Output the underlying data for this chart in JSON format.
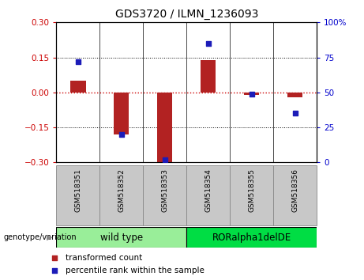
{
  "title": "GDS3720 / ILMN_1236093",
  "samples": [
    "GSM518351",
    "GSM518352",
    "GSM518353",
    "GSM518354",
    "GSM518355",
    "GSM518356"
  ],
  "transformed_count": [
    0.05,
    -0.18,
    -0.3,
    0.14,
    -0.01,
    -0.02
  ],
  "percentile_rank": [
    72,
    20,
    2,
    85,
    49,
    35
  ],
  "ylim_left": [
    -0.3,
    0.3
  ],
  "ylim_right": [
    0,
    100
  ],
  "yticks_left": [
    -0.3,
    -0.15,
    0,
    0.15,
    0.3
  ],
  "yticks_right": [
    0,
    25,
    50,
    75,
    100
  ],
  "bar_color": "#B22222",
  "scatter_color": "#1C1CB8",
  "hline_color": "#CC0000",
  "groups": [
    {
      "label": "wild type",
      "indices": [
        0,
        1,
        2
      ],
      "color": "#99EE99"
    },
    {
      "label": "RORalpha1delDE",
      "indices": [
        3,
        4,
        5
      ],
      "color": "#00DD44"
    }
  ],
  "genotype_label": "genotype/variation",
  "legend_items": [
    {
      "label": "transformed count",
      "color": "#B22222"
    },
    {
      "label": "percentile rank within the sample",
      "color": "#1C1CB8"
    }
  ],
  "tick_label_color_left": "#CC0000",
  "tick_label_color_right": "#0000CC",
  "bar_width": 0.35,
  "sample_box_color": "#C8C8C8",
  "sample_box_edge": "#888888"
}
